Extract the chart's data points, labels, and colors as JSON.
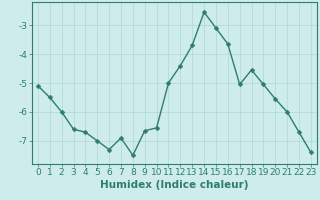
{
  "x": [
    0,
    1,
    2,
    3,
    4,
    5,
    6,
    7,
    8,
    9,
    10,
    11,
    12,
    13,
    14,
    15,
    16,
    17,
    18,
    19,
    20,
    21,
    22,
    23
  ],
  "y": [
    -5.1,
    -5.5,
    -6.0,
    -6.6,
    -6.7,
    -7.0,
    -7.3,
    -6.9,
    -7.5,
    -6.65,
    -6.55,
    -5.0,
    -4.4,
    -3.7,
    -2.55,
    -3.1,
    -3.65,
    -5.05,
    -4.55,
    -5.05,
    -5.55,
    -6.0,
    -6.7,
    -7.4
  ],
  "bg_color": "#ceecea",
  "line_color": "#2e7d6e",
  "marker_color": "#2e7d6e",
  "grid_color": "#aed8d4",
  "axis_color": "#2e7d6e",
  "spine_color": "#2e7d6e",
  "xlabel": "Humidex (Indice chaleur)",
  "ylim": [
    -7.8,
    -2.2
  ],
  "xlim": [
    -0.5,
    23.5
  ],
  "yticks": [
    -7,
    -6,
    -5,
    -4,
    -3
  ],
  "xticks": [
    0,
    1,
    2,
    3,
    4,
    5,
    6,
    7,
    8,
    9,
    10,
    11,
    12,
    13,
    14,
    15,
    16,
    17,
    18,
    19,
    20,
    21,
    22,
    23
  ],
  "xlabel_fontsize": 7.5,
  "tick_fontsize": 6.5,
  "line_width": 1.0,
  "marker_size": 2.5
}
